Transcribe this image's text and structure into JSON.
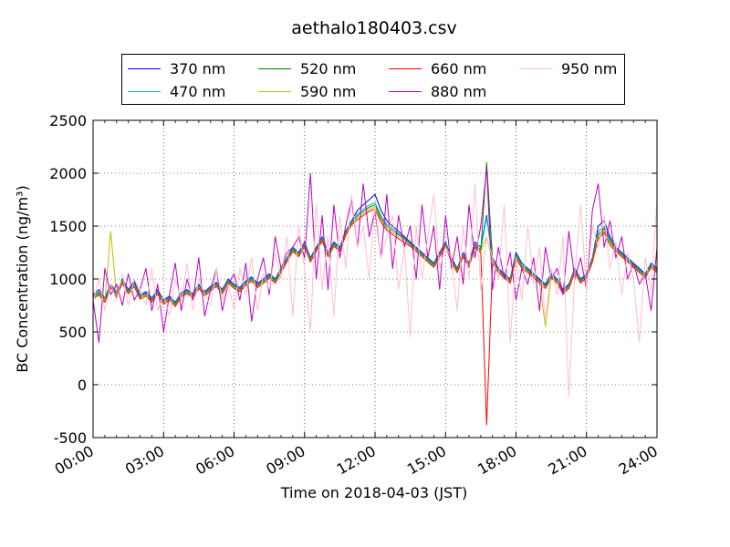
{
  "chart_data": {
    "type": "line",
    "title": "aethalo180403.csv",
    "xlabel": "Time on 2018-04-03 (JST)",
    "ylabel": "BC Concentration (ng/m³)",
    "xlim": [
      "00:00",
      "24:00"
    ],
    "ylim": [
      -500,
      2500
    ],
    "x_ticks": [
      "00:00",
      "03:00",
      "06:00",
      "09:00",
      "12:00",
      "15:00",
      "18:00",
      "21:00",
      "24:00"
    ],
    "y_ticks": [
      "-500",
      "0",
      "500",
      "1000",
      "1500",
      "2000",
      "2500"
    ],
    "grid": true,
    "legend_position": "top-center",
    "x_time_hours": [
      0,
      0.25,
      0.5,
      0.75,
      1,
      1.25,
      1.5,
      1.75,
      2,
      2.25,
      2.5,
      2.75,
      3,
      3.25,
      3.5,
      3.75,
      4,
      4.25,
      4.5,
      4.75,
      5,
      5.25,
      5.5,
      5.75,
      6,
      6.25,
      6.5,
      6.75,
      7,
      7.25,
      7.5,
      7.75,
      8,
      8.25,
      8.5,
      8.75,
      9,
      9.25,
      9.5,
      9.75,
      10,
      10.25,
      10.5,
      10.75,
      11,
      11.25,
      11.5,
      11.75,
      12,
      12.25,
      12.5,
      12.75,
      13,
      13.25,
      13.5,
      13.75,
      14,
      14.25,
      14.5,
      14.75,
      15,
      15.25,
      15.5,
      15.75,
      16,
      16.25,
      16.5,
      16.75,
      17,
      17.25,
      17.5,
      17.75,
      18,
      18.25,
      18.5,
      18.75,
      19,
      19.25,
      19.5,
      19.75,
      20,
      20.25,
      20.5,
      20.75,
      21,
      21.25,
      21.5,
      21.75,
      22,
      22.25,
      22.5,
      22.75,
      23,
      23.25,
      23.5,
      23.75,
      24
    ],
    "series": [
      {
        "name": "370 nm",
        "color": "#0000ff",
        "values": [
          850,
          900,
          820,
          950,
          870,
          1000,
          900,
          980,
          850,
          880,
          820,
          900,
          800,
          840,
          780,
          870,
          900,
          860,
          950,
          880,
          930,
          970,
          900,
          1000,
          950,
          920,
          980,
          1020,
          960,
          1000,
          1050,
          1000,
          1100,
          1200,
          1300,
          1250,
          1350,
          1200,
          1300,
          1400,
          1250,
          1350,
          1300,
          1450,
          1550,
          1650,
          1700,
          1750,
          1800,
          1650,
          1550,
          1500,
          1450,
          1400,
          1350,
          1300,
          1250,
          1200,
          1150,
          1250,
          1350,
          1200,
          1100,
          1250,
          1150,
          1350,
          1300,
          1600,
          1200,
          1100,
          1050,
          1000,
          1250,
          1150,
          1100,
          1050,
          1000,
          950,
          1050,
          1000,
          900,
          950,
          1100,
          1000,
          1050,
          1200,
          1500,
          1550,
          1400,
          1300,
          1250,
          1200,
          1150,
          1100,
          1050,
          1150,
          1100,
          1200
        ]
      },
      {
        "name": "470 nm",
        "color": "#00bfbf",
        "values": [
          840,
          880,
          810,
          940,
          860,
          990,
          890,
          960,
          840,
          870,
          810,
          890,
          790,
          830,
          770,
          860,
          890,
          850,
          940,
          870,
          920,
          960,
          890,
          990,
          940,
          910,
          970,
          1010,
          950,
          990,
          1040,
          990,
          1090,
          1190,
          1290,
          1240,
          1340,
          1190,
          1290,
          1390,
          1240,
          1340,
          1290,
          1440,
          1540,
          1620,
          1660,
          1700,
          1720,
          1600,
          1520,
          1480,
          1430,
          1390,
          1340,
          1290,
          1240,
          1190,
          1140,
          1240,
          1340,
          1190,
          1090,
          1240,
          1140,
          1330,
          1280,
          1580,
          1180,
          1090,
          1040,
          990,
          1230,
          1130,
          1090,
          1040,
          990,
          940,
          1040,
          990,
          890,
          940,
          1090,
          990,
          1040,
          1190,
          1450,
          1500,
          1380,
          1290,
          1240,
          1190,
          1140,
          1090,
          1040,
          1140,
          1090,
          1190
        ]
      },
      {
        "name": "520 nm",
        "color": "#008000",
        "values": [
          830,
          870,
          800,
          930,
          850,
          980,
          880,
          950,
          830,
          860,
          800,
          880,
          780,
          820,
          760,
          850,
          880,
          840,
          930,
          860,
          910,
          950,
          880,
          980,
          930,
          900,
          960,
          1000,
          940,
          980,
          1030,
          980,
          1080,
          1180,
          1280,
          1230,
          1330,
          1180,
          1280,
          1380,
          1230,
          1330,
          1280,
          1430,
          1530,
          1600,
          1640,
          1680,
          1700,
          1580,
          1500,
          1460,
          1420,
          1380,
          1330,
          1280,
          1230,
          1180,
          1130,
          1230,
          1330,
          1180,
          1080,
          1230,
          1130,
          1320,
          1270,
          2100,
          1170,
          1080,
          1030,
          980,
          1220,
          1120,
          1080,
          1030,
          980,
          930,
          1030,
          980,
          880,
          930,
          1080,
          980,
          1030,
          1180,
          1420,
          1480,
          1360,
          1280,
          1230,
          1180,
          1130,
          1080,
          1030,
          1130,
          1080,
          1180
        ]
      },
      {
        "name": "590 nm",
        "color": "#bfbf00",
        "values": [
          820,
          860,
          790,
          1450,
          840,
          970,
          870,
          940,
          820,
          850,
          790,
          870,
          770,
          810,
          750,
          840,
          870,
          830,
          920,
          850,
          900,
          940,
          870,
          970,
          920,
          890,
          950,
          990,
          930,
          970,
          1020,
          970,
          1070,
          1170,
          1270,
          1220,
          1320,
          1170,
          1270,
          1370,
          1220,
          1320,
          1270,
          1420,
          1520,
          1580,
          1620,
          1660,
          1680,
          1560,
          1480,
          1440,
          1400,
          1360,
          1320,
          1270,
          1220,
          1170,
          1120,
          1220,
          1320,
          1170,
          1070,
          1220,
          1120,
          1310,
          1260,
          1400,
          1160,
          1070,
          1020,
          970,
          1210,
          1110,
          1070,
          1020,
          970,
          550,
          1020,
          970,
          870,
          920,
          1070,
          970,
          1020,
          1170,
          1400,
          1460,
          1340,
          1270,
          1220,
          1170,
          1120,
          1070,
          1020,
          1120,
          1070,
          1170
        ]
      },
      {
        "name": "660 nm",
        "color": "#ff0000",
        "values": [
          810,
          850,
          780,
          920,
          830,
          960,
          860,
          930,
          810,
          840,
          780,
          860,
          760,
          800,
          740,
          830,
          860,
          820,
          910,
          840,
          890,
          930,
          860,
          960,
          910,
          880,
          940,
          980,
          920,
          960,
          1010,
          960,
          1060,
          1160,
          1260,
          1210,
          1310,
          1160,
          1260,
          1360,
          1210,
          1310,
          1260,
          1410,
          1510,
          1560,
          1600,
          1640,
          1660,
          1540,
          1460,
          1420,
          1380,
          1340,
          1310,
          1260,
          1210,
          1160,
          1110,
          1210,
          1310,
          1160,
          1060,
          1210,
          1110,
          1300,
          1250,
          -380,
          1150,
          1060,
          1010,
          960,
          1200,
          1100,
          1060,
          1010,
          960,
          910,
          1010,
          960,
          860,
          910,
          1060,
          960,
          1010,
          1160,
          1380,
          1440,
          1320,
          1260,
          1210,
          1160,
          1110,
          1060,
          1010,
          1110,
          1060,
          1160
        ]
      },
      {
        "name": "880 nm",
        "color": "#bf00bf",
        "values": [
          800,
          400,
          1100,
          850,
          950,
          750,
          1050,
          800,
          900,
          1100,
          700,
          950,
          500,
          850,
          1150,
          700,
          1000,
          800,
          1200,
          650,
          900,
          1100,
          700,
          950,
          1050,
          800,
          1150,
          600,
          1000,
          1200,
          850,
          1400,
          1100,
          1250,
          1300,
          1400,
          1200,
          2000,
          1000,
          1600,
          900,
          1700,
          1200,
          1500,
          1750,
          1300,
          1900,
          1400,
          1650,
          1200,
          1800,
          1100,
          1600,
          1300,
          1500,
          1000,
          1700,
          1200,
          1500,
          900,
          1600,
          1100,
          1400,
          950,
          1700,
          1200,
          1500,
          2050,
          900,
          1300,
          1000,
          1250,
          800,
          1100,
          950,
          1200,
          700,
          1300,
          1000,
          1100,
          850,
          1450,
          1000,
          1200,
          900,
          1650,
          1900,
          1300,
          1550,
          1200,
          1400,
          1000,
          1150,
          950,
          1050,
          700,
          1300
        ]
      },
      {
        "name": "950 nm",
        "color": "#ffc0cb",
        "values": [
          780,
          1000,
          700,
          950,
          800,
          1050,
          750,
          1000,
          900,
          750,
          1100,
          700,
          850,
          650,
          1000,
          800,
          1150,
          700,
          1000,
          850,
          750,
          1100,
          800,
          950,
          700,
          1100,
          850,
          1200,
          700,
          1050,
          900,
          1250,
          1000,
          1400,
          650,
          1500,
          1100,
          500,
          1700,
          900,
          1400,
          650,
          1600,
          1100,
          1800,
          1300,
          1500,
          1000,
          1700,
          1200,
          1400,
          1600,
          900,
          1300,
          450,
          1500,
          1000,
          1400,
          1800,
          1100,
          1300,
          1200,
          700,
          1500,
          1000,
          1900,
          900,
          1400,
          1200,
          1000,
          1700,
          400,
          1200,
          800,
          1500,
          950,
          1300,
          600,
          1100,
          850,
          1400,
          -120,
          1050,
          1700,
          900,
          1500,
          1300,
          1600,
          1100,
          1350,
          850,
          1250,
          1000,
          400,
          1200,
          900,
          1750
        ]
      }
    ]
  }
}
